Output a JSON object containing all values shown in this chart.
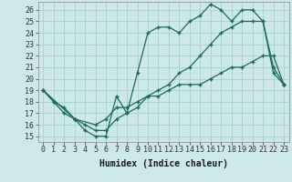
{
  "xlabel": "Humidex (Indice chaleur)",
  "background_color": "#cce8e8",
  "grid_color": "#aacfcf",
  "line_color": "#1a6b5a",
  "xlim": [
    -0.5,
    23.5
  ],
  "ylim": [
    14.5,
    26.7
  ],
  "yticks": [
    15,
    16,
    17,
    18,
    19,
    20,
    21,
    22,
    23,
    24,
    25,
    26
  ],
  "xticks": [
    0,
    1,
    2,
    3,
    4,
    5,
    6,
    7,
    8,
    9,
    10,
    11,
    12,
    13,
    14,
    15,
    16,
    17,
    18,
    19,
    20,
    21,
    22,
    23
  ],
  "line1_x": [
    0,
    1,
    2,
    3,
    4,
    5,
    6,
    7,
    8,
    9,
    10,
    11,
    12,
    13,
    14,
    15,
    16,
    17,
    18,
    19,
    20,
    21,
    22,
    23
  ],
  "line1_y": [
    19,
    18,
    17,
    16.5,
    15.5,
    15,
    15,
    18.5,
    17,
    20.5,
    24,
    24.5,
    24.5,
    24,
    25,
    25.5,
    26.5,
    26,
    25,
    26,
    26,
    25,
    20.5,
    19.5
  ],
  "line2_x": [
    0,
    1,
    2,
    3,
    4,
    5,
    6,
    7,
    8,
    9,
    10,
    11,
    12,
    13,
    14,
    15,
    16,
    17,
    18,
    19,
    20,
    21,
    22,
    23
  ],
  "line2_y": [
    19,
    18,
    17.5,
    16.5,
    16,
    15.5,
    15.5,
    16.5,
    17,
    17.5,
    18.5,
    19,
    19.5,
    20.5,
    21,
    22,
    23,
    24,
    24.5,
    25,
    25,
    25,
    21,
    19.5
  ],
  "line3_x": [
    0,
    3,
    5,
    6,
    7,
    8,
    9,
    10,
    11,
    12,
    13,
    14,
    15,
    16,
    17,
    18,
    19,
    20,
    21,
    22,
    23
  ],
  "line3_y": [
    19,
    16.5,
    16,
    16.5,
    17.5,
    17.5,
    18,
    18.5,
    18.5,
    19,
    19.5,
    19.5,
    19.5,
    20,
    20.5,
    21,
    21,
    21.5,
    22,
    22,
    19.5
  ],
  "marker": "+",
  "marker_size": 3,
  "linewidth": 0.9,
  "font_size_ticks": 6,
  "font_size_label": 7
}
